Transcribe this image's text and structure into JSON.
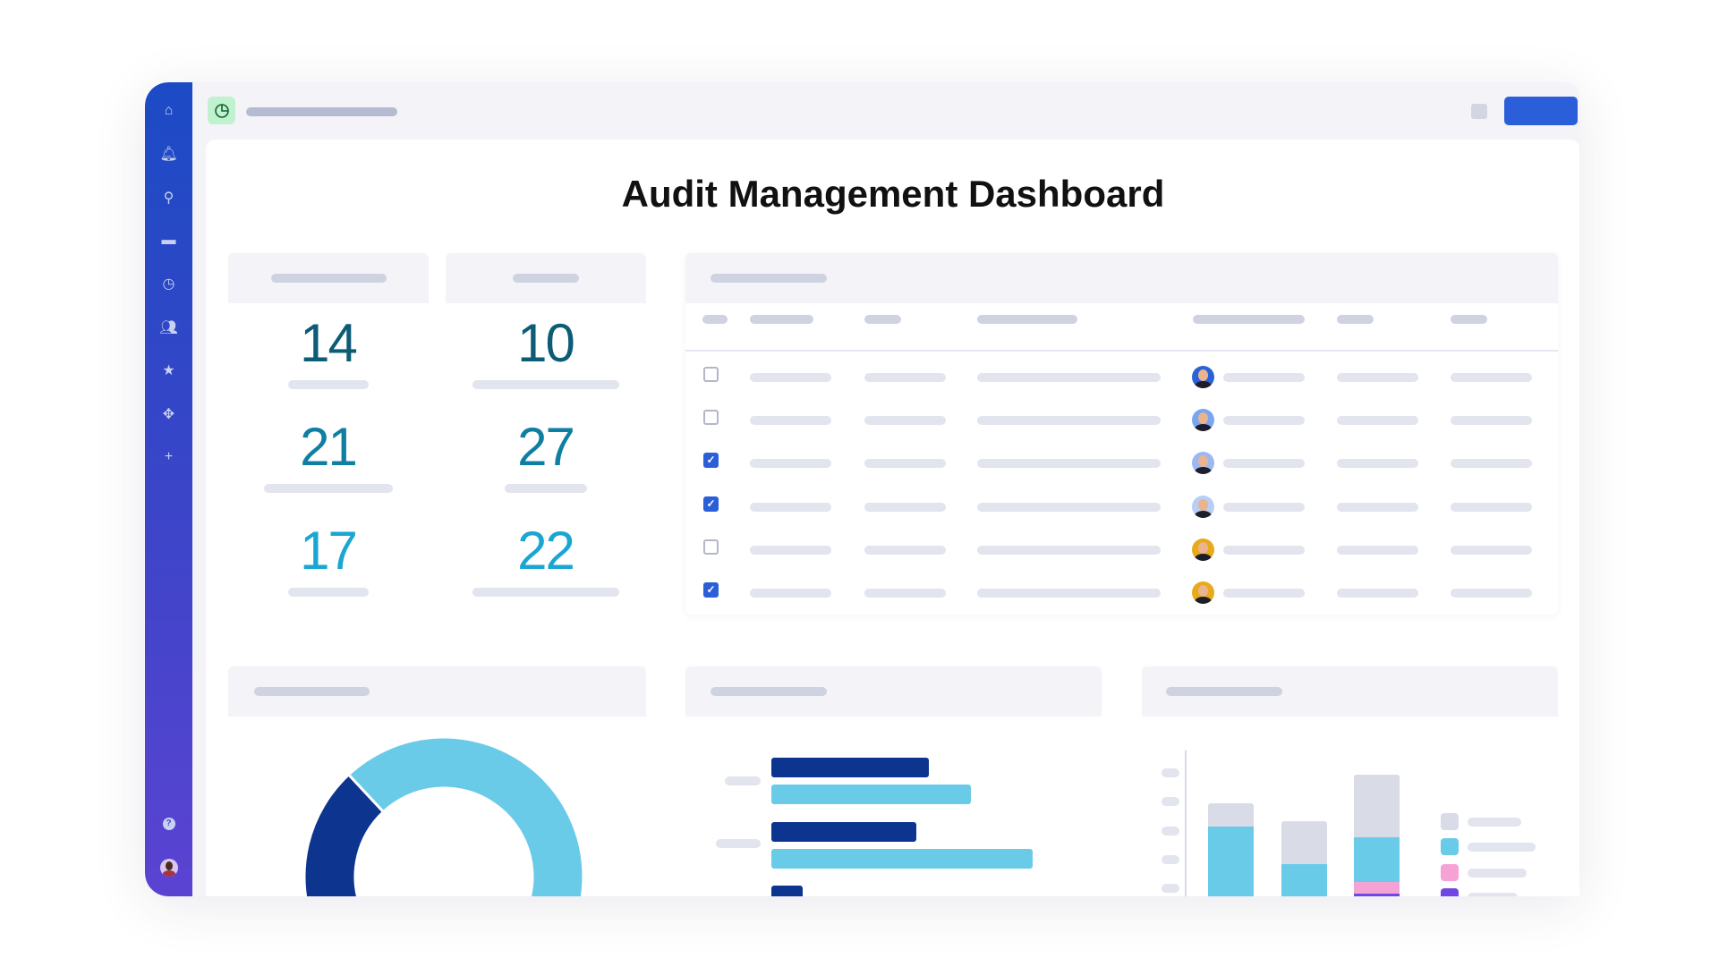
{
  "page": {
    "title": "Audit Management Dashboard"
  },
  "topbar": {
    "app_icon": "pie-chart-icon",
    "primary_button_color": "#2b5fd9",
    "app_icon_bg": "#c1f2cf"
  },
  "sidebar": {
    "top_items": [
      "home-icon",
      "bell-icon",
      "search-icon",
      "folder-icon",
      "clock-icon",
      "people-icon",
      "star-icon",
      "integrations-icon",
      "plus-icon"
    ],
    "bottom_items": [
      "apps-grid-icon",
      "help-icon",
      "user-avatar"
    ]
  },
  "stats": [
    {
      "value": "14",
      "color": "#0d5c75"
    },
    {
      "value": "10",
      "color": "#0d5c75"
    },
    {
      "value": "21",
      "color": "#0e7fa3"
    },
    {
      "value": "27",
      "color": "#0e7fa3"
    },
    {
      "value": "17",
      "color": "#1aa6d2"
    },
    {
      "value": "22",
      "color": "#1aa6d2"
    }
  ],
  "table": {
    "rows": [
      {
        "checked": false,
        "avatar_color": "#2b63d6"
      },
      {
        "checked": false,
        "avatar_color": "#7aa6f0"
      },
      {
        "checked": true,
        "avatar_color": "#9bb8f2"
      },
      {
        "checked": true,
        "avatar_color": "#b9cdf5"
      },
      {
        "checked": false,
        "avatar_color": "#e8a91a"
      },
      {
        "checked": true,
        "avatar_color": "#e8a91a"
      }
    ]
  },
  "colors": {
    "navy": "#0d3590",
    "cyan": "#6acbe8",
    "grey": "#d9dbe7",
    "pink": "#f5a3d4",
    "purple": "#7047e4"
  }
}
